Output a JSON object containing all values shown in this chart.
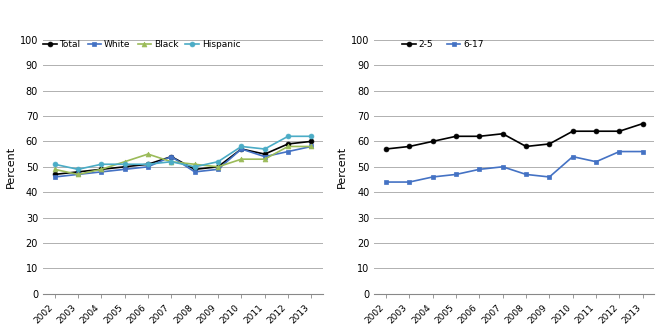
{
  "years": [
    2002,
    2003,
    2004,
    2005,
    2006,
    2007,
    2008,
    2009,
    2010,
    2011,
    2012,
    2013
  ],
  "chart1": {
    "Total": [
      47,
      48,
      49,
      50,
      51,
      54,
      49,
      50,
      57,
      55,
      59,
      60
    ],
    "White": [
      46,
      47,
      48,
      49,
      50,
      54,
      48,
      49,
      57,
      54,
      56,
      58
    ],
    "Black": [
      49,
      47,
      49,
      52,
      55,
      52,
      51,
      50,
      53,
      53,
      58,
      58
    ],
    "Hispanic": [
      51,
      49,
      51,
      51,
      51,
      52,
      50,
      52,
      58,
      57,
      62,
      62
    ]
  },
  "chart1_colors": {
    "Total": "#000000",
    "White": "#4472c4",
    "Black": "#9bbb59",
    "Hispanic": "#4bacc6"
  },
  "chart1_markers": {
    "Total": "o",
    "White": "s",
    "Black": "^",
    "Hispanic": "o"
  },
  "chart2": {
    "2-5": [
      57,
      58,
      60,
      62,
      62,
      63,
      58,
      59,
      64,
      64,
      64,
      67
    ],
    "6-17": [
      44,
      44,
      46,
      47,
      49,
      50,
      47,
      46,
      54,
      52,
      56,
      56
    ]
  },
  "chart2_colors": {
    "2-5": "#000000",
    "6-17": "#4472c4"
  },
  "chart2_markers": {
    "2-5": "o",
    "6-17": "s"
  },
  "ylabel": "Percent",
  "ylim": [
    0,
    100
  ],
  "yticks": [
    0,
    10,
    20,
    30,
    40,
    50,
    60,
    70,
    80,
    90,
    100
  ],
  "background_color": "#ffffff",
  "grid_color": "#b0b0b0"
}
